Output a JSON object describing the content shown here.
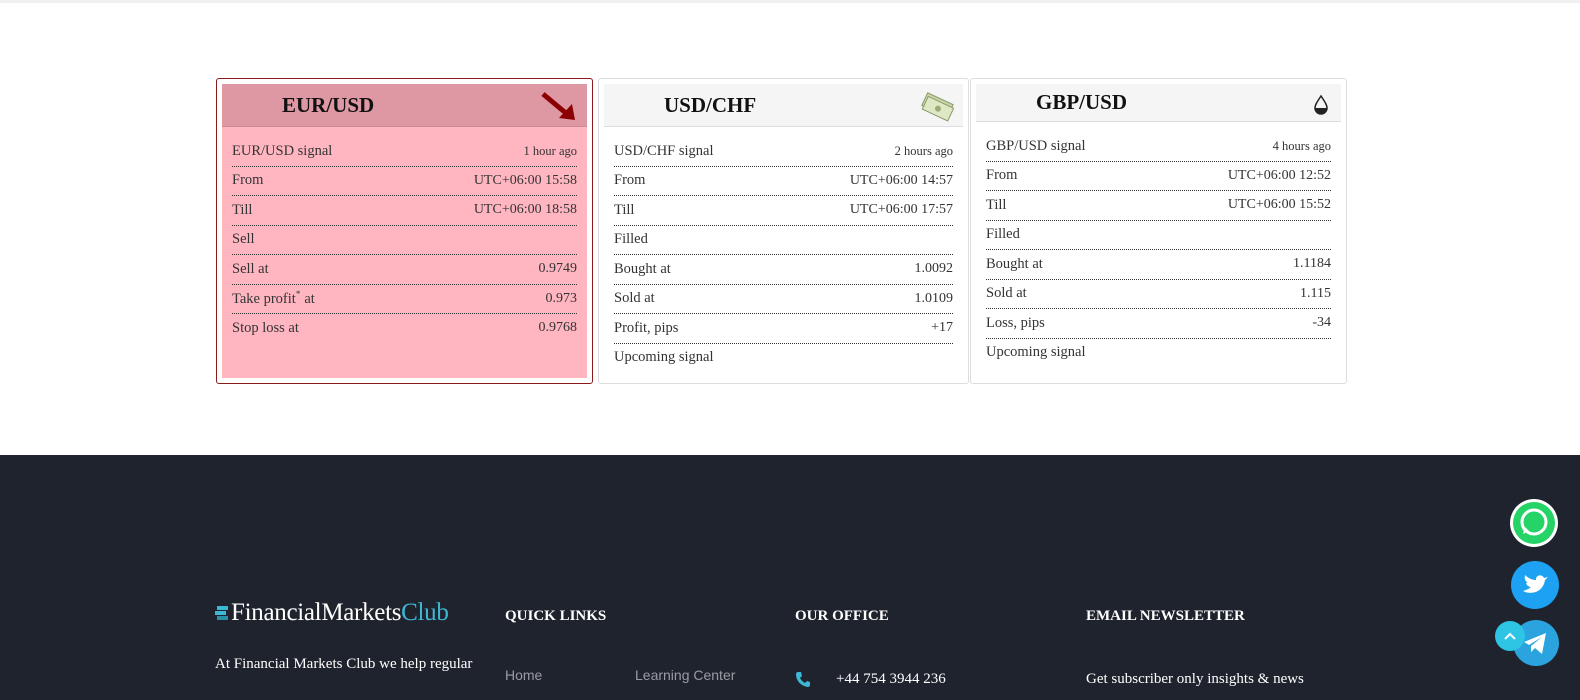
{
  "cards": [
    {
      "pair": "EUR/USD",
      "rows": [
        {
          "label": "EUR/USD signal",
          "value": "1 hour ago"
        },
        {
          "label": "From",
          "value": "UTC+06:00 15:58"
        },
        {
          "label": "Till",
          "value": "UTC+06:00 18:58"
        },
        {
          "label": "Sell"
        },
        {
          "label": "Sell at",
          "value": "0.9749"
        },
        {
          "label": "Take profit",
          "sup": "*",
          "label_end": "at",
          "value": "0.973"
        },
        {
          "label": "Stop loss at",
          "value": "0.9768"
        }
      ]
    },
    {
      "pair": "USD/CHF",
      "rows": [
        {
          "label": "USD/CHF signal",
          "value": "2 hours ago"
        },
        {
          "label": "From",
          "value": "UTC+06:00 14:57"
        },
        {
          "label": "Till",
          "value": "UTC+06:00 17:57"
        },
        {
          "label": "Filled"
        },
        {
          "label": "Bought at",
          "value": "1.0092"
        },
        {
          "label": "Sold at",
          "value": "1.0109"
        },
        {
          "label": "Profit, pips",
          "value": "+17"
        },
        {
          "label": "Upcoming signal"
        }
      ]
    },
    {
      "pair": "GBP/USD",
      "rows": [
        {
          "label": "GBP/USD signal",
          "value": "4 hours ago"
        },
        {
          "label": "From",
          "value": "UTC+06:00 12:52"
        },
        {
          "label": "Till",
          "value": "UTC+06:00 15:52"
        },
        {
          "label": "Filled"
        },
        {
          "label": "Bought at",
          "value": "1.1184"
        },
        {
          "label": "Sold at",
          "value": "1.115"
        },
        {
          "label": "Loss, pips",
          "value": "-34"
        },
        {
          "label": "Upcoming signal"
        }
      ]
    }
  ],
  "footer": {
    "logo": {
      "main": "FinancialMarkets",
      "accent": "Club"
    },
    "about": "At Financial Markets Club we help regular",
    "quick_links": {
      "heading": "QUICK LINKS",
      "links": [
        "Home",
        "Learning Center"
      ]
    },
    "office": {
      "heading": "OUR OFFICE",
      "phone": "+44 754 3944 236"
    },
    "newsletter": {
      "heading": "EMAIL NEWSLETTER",
      "text": "Get subscriber only insights & news"
    }
  }
}
